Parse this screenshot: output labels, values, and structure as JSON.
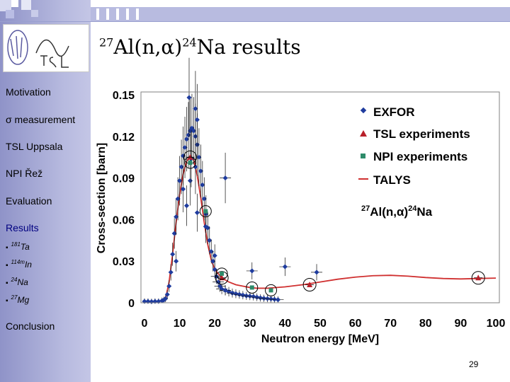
{
  "slide": {
    "title_pre": "27",
    "title_mid": "Al(n,α)",
    "title_sup2": "24",
    "title_post": "Na results",
    "page_number": "29"
  },
  "sidebar": {
    "items": [
      {
        "label": "Motivation"
      },
      {
        "label": "σ measurement"
      },
      {
        "label": "TSL Uppsala"
      },
      {
        "label": "NPI Řež"
      },
      {
        "label": "Evaluation"
      },
      {
        "label": "Results"
      },
      {
        "label": "Conclusion"
      }
    ],
    "subitems": [
      {
        "bullet": "▪",
        "sup": "181",
        "label": "Ta"
      },
      {
        "bullet": "▪",
        "sup": "114m",
        "label": "In"
      },
      {
        "bullet": "▪",
        "sup": "24",
        "label": "Na"
      },
      {
        "bullet": "▪",
        "sup": "27",
        "label": "Mg"
      }
    ]
  },
  "colors": {
    "exfor": "#1f3c9e",
    "tsl": "#b8202a",
    "npi": "#2e8b6a",
    "talys": "#d03030",
    "sidebar": "#a8abd8"
  },
  "chart_data": {
    "type": "scatter",
    "xlabel": "Neutron energy [MeV]",
    "ylabel": "Cross-section [barn]",
    "xlim": [
      0,
      100
    ],
    "ylim": [
      0,
      0.15
    ],
    "xticks": [
      "0",
      "10",
      "20",
      "30",
      "40",
      "50",
      "60",
      "70",
      "80",
      "90",
      "100"
    ],
    "yticks": [
      "0",
      "0.03",
      "0.06",
      "0.09",
      "0.12",
      "0.15"
    ],
    "legend": [
      "EXFOR",
      "TSL experiments",
      "NPI experiments",
      "TALYS"
    ],
    "annotation": {
      "pre": "27",
      "mid": "Al(n,α)",
      "sup": "24",
      "post": "Na"
    },
    "series": [
      {
        "name": "EXFOR",
        "points": [
          [
            0,
            0.001
          ],
          [
            1,
            0.001
          ],
          [
            2,
            0.0008
          ],
          [
            3,
            0.001
          ],
          [
            4,
            0.001
          ],
          [
            5,
            0.0015
          ],
          [
            5.5,
            0.002
          ],
          [
            6,
            0.003
          ],
          [
            6.5,
            0.006
          ],
          [
            7,
            0.012
          ],
          [
            7.5,
            0.022
          ],
          [
            8,
            0.035
          ],
          [
            8.5,
            0.05
          ],
          [
            9,
            0.062
          ],
          [
            9.5,
            0.075
          ],
          [
            10,
            0.088
          ],
          [
            10.5,
            0.098
          ],
          [
            11,
            0.106
          ],
          [
            11.5,
            0.112
          ],
          [
            12,
            0.118
          ],
          [
            12.5,
            0.121
          ],
          [
            13,
            0.124
          ],
          [
            13.5,
            0.126
          ],
          [
            14,
            0.124
          ],
          [
            14.5,
            0.12
          ],
          [
            15,
            0.114
          ],
          [
            15.5,
            0.105
          ],
          [
            16,
            0.095
          ],
          [
            16.5,
            0.085
          ],
          [
            17,
            0.075
          ],
          [
            17.5,
            0.064
          ],
          [
            18,
            0.054
          ],
          [
            18.5,
            0.045
          ],
          [
            19,
            0.037
          ],
          [
            19.5,
            0.03
          ],
          [
            20,
            0.024
          ],
          [
            20.5,
            0.019
          ],
          [
            21,
            0.015
          ],
          [
            21.5,
            0.012
          ],
          [
            22,
            0.01
          ],
          [
            23,
            0.009
          ],
          [
            24,
            0.008
          ],
          [
            25,
            0.007
          ],
          [
            26,
            0.0065
          ],
          [
            27,
            0.006
          ],
          [
            28,
            0.0055
          ],
          [
            29,
            0.005
          ],
          [
            30,
            0.0048
          ],
          [
            31,
            0.0045
          ],
          [
            32,
            0.004
          ],
          [
            33,
            0.0035
          ],
          [
            34,
            0.0032
          ],
          [
            35,
            0.003
          ],
          [
            36,
            0.0028
          ],
          [
            37,
            0.0025
          ],
          [
            38,
            0.0022
          ],
          [
            9,
            0.03
          ],
          [
            11,
            0.082
          ],
          [
            12,
            0.07
          ],
          [
            13,
            0.088
          ],
          [
            15,
            0.065
          ],
          [
            20,
            0.034
          ],
          [
            23,
            0.009
          ],
          [
            12.7,
            0.148
          ],
          [
            14.5,
            0.14
          ],
          [
            15,
            0.132
          ],
          [
            13.3,
            0.104
          ],
          [
            14.5,
            0.098
          ],
          [
            17.4,
            0.055
          ],
          [
            23,
            0.09
          ],
          [
            30.6,
            0.023
          ],
          [
            40,
            0.026
          ],
          [
            49,
            0.022
          ]
        ]
      },
      {
        "name": "TSL experiments",
        "points": [
          [
            13,
            0.105
          ],
          [
            22,
            0.018
          ],
          [
            47,
            0.013
          ],
          [
            95,
            0.018
          ]
        ]
      },
      {
        "name": "NPI experiments",
        "points": [
          [
            13,
            0.101
          ],
          [
            17.4,
            0.066
          ],
          [
            22,
            0.021
          ],
          [
            30.6,
            0.011
          ],
          [
            36,
            0.009
          ]
        ]
      },
      {
        "name": "TALYS",
        "points": [
          [
            5,
            0.0005
          ],
          [
            6,
            0.003
          ],
          [
            7,
            0.015
          ],
          [
            8,
            0.035
          ],
          [
            9,
            0.058
          ],
          [
            10,
            0.078
          ],
          [
            11,
            0.093
          ],
          [
            12,
            0.102
          ],
          [
            13,
            0.106
          ],
          [
            14,
            0.103
          ],
          [
            15,
            0.092
          ],
          [
            16,
            0.076
          ],
          [
            17,
            0.058
          ],
          [
            18,
            0.042
          ],
          [
            19,
            0.031
          ],
          [
            20,
            0.024
          ],
          [
            22,
            0.018
          ],
          [
            24,
            0.015
          ],
          [
            26,
            0.013
          ],
          [
            28,
            0.012
          ],
          [
            30,
            0.011
          ],
          [
            32,
            0.0105
          ],
          [
            35,
            0.0105
          ],
          [
            40,
            0.0115
          ],
          [
            45,
            0.013
          ],
          [
            50,
            0.015
          ],
          [
            55,
            0.017
          ],
          [
            60,
            0.0185
          ],
          [
            65,
            0.0195
          ],
          [
            70,
            0.0198
          ],
          [
            75,
            0.0192
          ],
          [
            80,
            0.0182
          ],
          [
            85,
            0.0175
          ],
          [
            90,
            0.0172
          ],
          [
            95,
            0.0175
          ],
          [
            100,
            0.0178
          ]
        ]
      }
    ]
  }
}
